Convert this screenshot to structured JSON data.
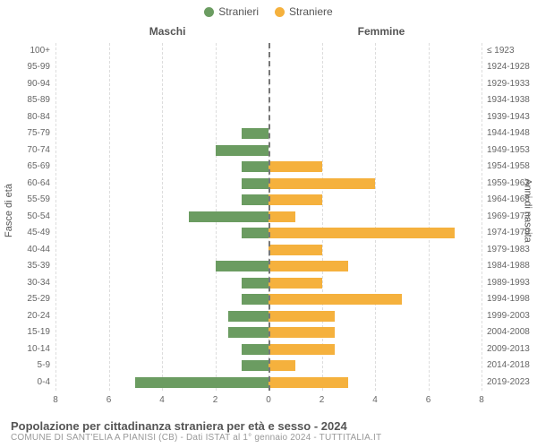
{
  "legend": {
    "male": {
      "label": "Stranieri",
      "color": "#6b9c61"
    },
    "female": {
      "label": "Straniere",
      "color": "#f5b13d"
    }
  },
  "chart": {
    "type": "population-pyramid",
    "col_header_left": "Maschi",
    "col_header_right": "Femmine",
    "y_axis_left_title": "Fasce di età",
    "y_axis_right_title": "Anni di nascita",
    "x_max": 8,
    "x_ticks": [
      8,
      6,
      4,
      2,
      0,
      2,
      4,
      6,
      8
    ],
    "grid_color": "#dddddd",
    "center_color": "#777777",
    "rows": [
      {
        "age": "100+",
        "birth": "≤ 1923",
        "m": 0,
        "f": 0
      },
      {
        "age": "95-99",
        "birth": "1924-1928",
        "m": 0,
        "f": 0
      },
      {
        "age": "90-94",
        "birth": "1929-1933",
        "m": 0,
        "f": 0
      },
      {
        "age": "85-89",
        "birth": "1934-1938",
        "m": 0,
        "f": 0
      },
      {
        "age": "80-84",
        "birth": "1939-1943",
        "m": 0,
        "f": 0
      },
      {
        "age": "75-79",
        "birth": "1944-1948",
        "m": 1,
        "f": 0
      },
      {
        "age": "70-74",
        "birth": "1949-1953",
        "m": 2,
        "f": 0
      },
      {
        "age": "65-69",
        "birth": "1954-1958",
        "m": 1,
        "f": 2
      },
      {
        "age": "60-64",
        "birth": "1959-1963",
        "m": 1,
        "f": 4
      },
      {
        "age": "55-59",
        "birth": "1964-1968",
        "m": 1,
        "f": 2
      },
      {
        "age": "50-54",
        "birth": "1969-1973",
        "m": 3,
        "f": 1
      },
      {
        "age": "45-49",
        "birth": "1974-1978",
        "m": 1,
        "f": 7
      },
      {
        "age": "40-44",
        "birth": "1979-1983",
        "m": 0,
        "f": 2
      },
      {
        "age": "35-39",
        "birth": "1984-1988",
        "m": 2,
        "f": 3
      },
      {
        "age": "30-34",
        "birth": "1989-1993",
        "m": 1,
        "f": 2
      },
      {
        "age": "25-29",
        "birth": "1994-1998",
        "m": 1,
        "f": 5
      },
      {
        "age": "20-24",
        "birth": "1999-2003",
        "m": 1.5,
        "f": 2.5
      },
      {
        "age": "15-19",
        "birth": "2004-2008",
        "m": 1.5,
        "f": 2.5
      },
      {
        "age": "10-14",
        "birth": "2009-2013",
        "m": 1,
        "f": 2.5
      },
      {
        "age": "5-9",
        "birth": "2014-2018",
        "m": 1,
        "f": 1
      },
      {
        "age": "0-4",
        "birth": "2019-2023",
        "m": 5,
        "f": 3
      }
    ]
  },
  "footer": {
    "title": "Popolazione per cittadinanza straniera per età e sesso - 2024",
    "subtitle": "COMUNE DI SANT'ELIA A PIANISI (CB) - Dati ISTAT al 1° gennaio 2024 - TUTTITALIA.IT"
  }
}
